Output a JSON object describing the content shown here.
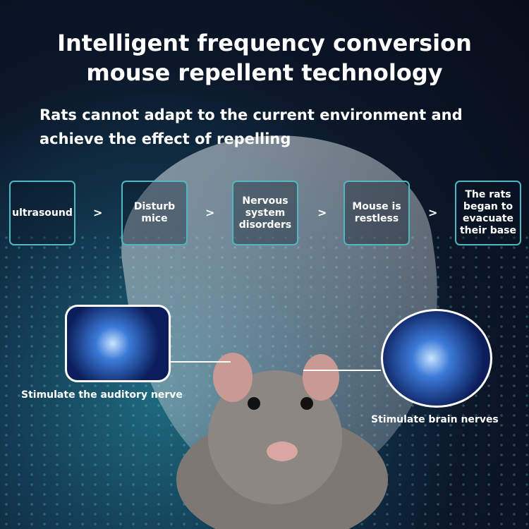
{
  "title": {
    "line1": "Intelligent frequency conversion",
    "line2": "mouse repellent technology"
  },
  "subtitle": "Rats cannot adapt to the current environment and achieve the effect of repelling",
  "flow": {
    "steps": [
      "ultrasound",
      "Disturb mice",
      "Nervous system disorders",
      "Mouse is restless",
      "The rats began to evacuate their base"
    ],
    "separator": ">"
  },
  "callouts": {
    "left": "Stimulate the auditory nerve",
    "right": "Stimulate brain nerves"
  },
  "colors": {
    "accent": "#4fb8c0",
    "background": "#0b1628"
  }
}
